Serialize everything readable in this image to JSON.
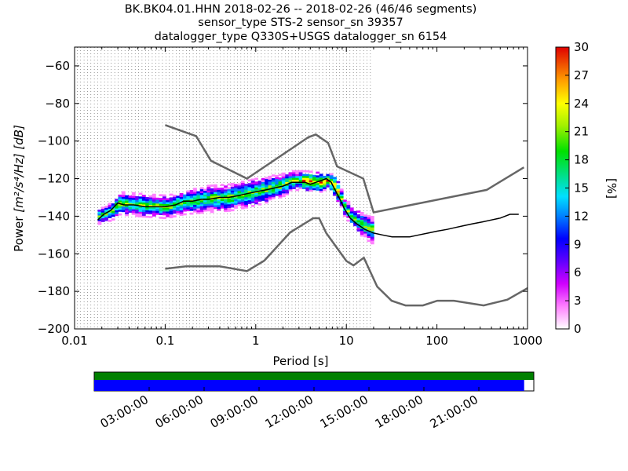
{
  "title": {
    "line1": "BK.BK04.01.HHN   2018-02-26 -- 2018-02-26  (46/46 segments)",
    "line2": "sensor_type STS-2 sensor_sn 39357",
    "line3": "datalogger_type Q330S+USGS datalogger_sn 6154"
  },
  "chart_data": {
    "type": "heatmap",
    "xlabel": "Period [s]",
    "ylabel_prefix": "Power ",
    "ylabel_units": "[m²/s⁴/Hz] [dB]",
    "x_scale": "log",
    "xlim": [
      0.01,
      1000
    ],
    "ylim": [
      -200,
      -50
    ],
    "x_ticks": [
      0.01,
      0.1,
      1,
      10,
      100,
      1000
    ],
    "x_tick_labels": [
      "0.01",
      "0.1",
      "1",
      "10",
      "100",
      "1000"
    ],
    "y_ticks": [
      -200,
      -180,
      -160,
      -140,
      -120,
      -100,
      -80,
      -60
    ],
    "y_tick_labels": [
      "−200",
      "−180",
      "−160",
      "−140",
      "−120",
      "−100",
      "−80",
      "−60"
    ],
    "grid": "dotted vertical lines at period bins",
    "colorbar": {
      "label": "[%]",
      "range": [
        0,
        30
      ],
      "ticks": [
        "0",
        "3",
        "6",
        "9",
        "12",
        "15",
        "18",
        "21",
        "24",
        "27",
        "30"
      ],
      "colormap": "pqlx"
    },
    "noise_models": [
      {
        "x": [
          0.1,
          0.22,
          0.32,
          0.8,
          3.8,
          4.6,
          6.3,
          7.9,
          15.4,
          20,
          354,
          912
        ],
        "y": [
          -91.5,
          -97.4,
          -110.5,
          -120,
          -98,
          -96.5,
          -101,
          -113.5,
          -120,
          -138,
          -126,
          -114
        ]
      },
      {
        "x": [
          0.1,
          0.17,
          0.4,
          0.8,
          1.24,
          2.4,
          4.3,
          5,
          6,
          10,
          12,
          15.6,
          21.9,
          31.6,
          45,
          70,
          101,
          154,
          328,
          600,
          1000
        ],
        "y": [
          -168,
          -166.7,
          -166.7,
          -169.2,
          -163.7,
          -148.6,
          -141.1,
          -141.1,
          -149,
          -163.8,
          -166.2,
          -162.1,
          -177.5,
          -185,
          -187.5,
          -187.5,
          -185,
          -185,
          -187.5,
          -184.4,
          -178.3
        ]
      }
    ],
    "mean_curve": {
      "x": [
        0.018,
        0.021,
        0.025,
        0.03,
        0.035,
        0.045,
        0.06,
        0.08,
        0.1,
        0.13,
        0.16,
        0.2,
        0.25,
        0.3,
        0.4,
        0.5,
        0.65,
        0.8,
        1.0,
        1.3,
        1.6,
        2.0,
        2.5,
        3.0,
        3.5,
        4.0,
        4.6,
        5.3,
        6.0,
        6.8,
        7.5,
        8.5,
        9.5,
        11,
        13,
        16,
        20,
        25,
        32,
        40,
        50,
        63,
        80,
        100,
        130,
        160,
        200,
        250,
        320,
        400,
        500,
        640,
        800
      ],
      "y": [
        -142,
        -139,
        -137,
        -133,
        -134,
        -134,
        -135,
        -135,
        -135,
        -134,
        -132,
        -132,
        -131,
        -131,
        -130,
        -130,
        -129,
        -128,
        -127,
        -126,
        -125,
        -124,
        -122,
        -122,
        -122,
        -123,
        -122,
        -121,
        -120,
        -122,
        -126,
        -131,
        -136,
        -141,
        -144,
        -147,
        -149,
        -150,
        -151,
        -151,
        -151,
        -150,
        -149,
        -148,
        -147,
        -146,
        -145,
        -144,
        -143,
        -142,
        -141,
        -139,
        -139
      ]
    },
    "density_band": {
      "x": [
        0.018,
        0.025,
        0.03,
        0.05,
        0.1,
        0.15,
        0.25,
        0.5,
        0.8,
        1.2,
        2.0,
        2.5,
        3.5,
        5,
        6,
        7,
        8,
        9,
        11,
        14,
        18,
        25,
        35,
        50,
        70,
        100,
        150,
        200,
        300,
        400,
        600,
        800
      ],
      "center": [
        -140,
        -137,
        -133,
        -134,
        -135,
        -133,
        -131,
        -130,
        -128,
        -126,
        -123,
        -121,
        -121,
        -122,
        -121,
        -123,
        -128,
        -134,
        -140,
        -144,
        -147,
        -150,
        -151,
        -150,
        -149,
        -147,
        -145,
        -144,
        -143,
        -141,
        -139,
        -139
      ],
      "halfwidth": [
        3,
        4,
        5,
        5,
        5,
        5,
        6,
        6,
        6,
        6,
        5,
        4,
        4,
        4,
        3,
        4,
        4,
        4,
        4,
        5,
        6,
        8,
        8,
        8,
        8,
        8,
        8,
        7,
        7,
        7,
        7,
        7
      ]
    }
  },
  "availability": {
    "time_labels": [
      "03:00:00",
      "06:00:00",
      "09:00:00",
      "12:00:00",
      "15:00:00",
      "18:00:00",
      "21:00:00"
    ],
    "coverage_fraction": 0.978,
    "colors": {
      "top_bar": "#008000",
      "bottom_bar": "#0000ff"
    }
  }
}
